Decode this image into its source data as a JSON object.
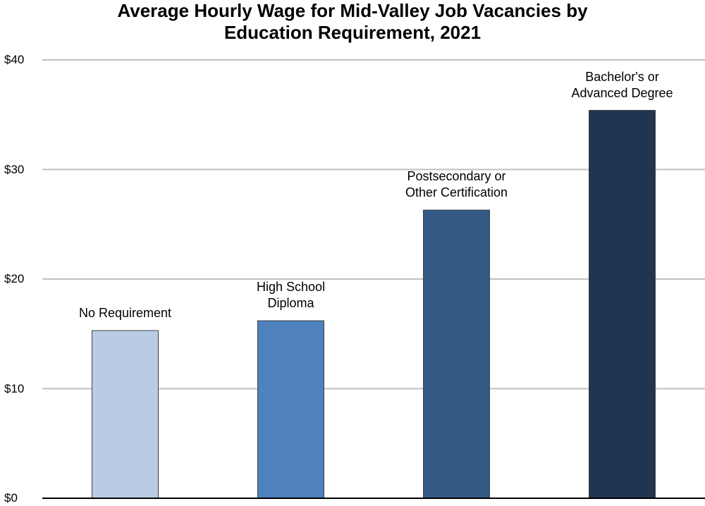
{
  "chart_data": {
    "type": "bar",
    "title": "Average Hourly Wage for Mid-Valley Job Vacancies by\nEducation Requirement, 2021",
    "categories": [
      "No Requirement",
      "High School\nDiploma",
      "Postsecondary or\nOther Certification",
      "Bachelor's or\nAdvanced Degree"
    ],
    "values": [
      15.3,
      16.2,
      26.3,
      35.4
    ],
    "colors": [
      "#b9cce4",
      "#4f81bd",
      "#355a86",
      "#1f3550"
    ],
    "ylim": [
      0,
      40
    ],
    "yticks": [
      {
        "value": 0,
        "label": "$0"
      },
      {
        "value": 10,
        "label": "$10"
      },
      {
        "value": 20,
        "label": "$20"
      },
      {
        "value": 30,
        "label": "$30"
      },
      {
        "value": 40,
        "label": "$40"
      }
    ],
    "grid": true
  }
}
